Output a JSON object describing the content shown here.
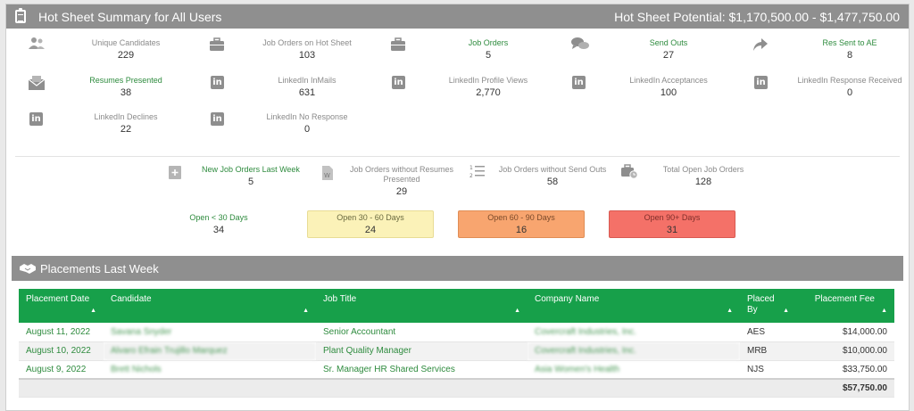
{
  "header": {
    "title": "Hot Sheet Summary for All Users",
    "potential": "Hot Sheet Potential: $1,170,500.00 - $1,477,750.00"
  },
  "stats": [
    {
      "label": "Unique Candidates",
      "value": "229",
      "icon": "users-icon"
    },
    {
      "label": "Job Orders on Hot Sheet",
      "value": "103",
      "icon": "briefcase-icon"
    },
    {
      "label": "Job Orders",
      "value": "5",
      "icon": "briefcase-icon"
    },
    {
      "label": "Send Outs",
      "value": "27",
      "icon": "chat-bubbles-icon"
    },
    {
      "label": "Res Sent to AE",
      "value": "8",
      "icon": "share-arrow-icon"
    },
    {
      "label": "Resumes Presented",
      "value": "38",
      "icon": "envelope-icon"
    },
    {
      "label": "LinkedIn InMails",
      "value": "631",
      "icon": "linkedin-icon"
    },
    {
      "label": "LinkedIn Profile Views",
      "value": "2,770",
      "icon": "linkedin-icon"
    },
    {
      "label": "LinkedIn Acceptances",
      "value": "100",
      "icon": "linkedin-icon"
    },
    {
      "label": "LinkedIn Response Received",
      "value": "0",
      "icon": "linkedin-icon"
    },
    {
      "label": "LinkedIn Declines",
      "value": "22",
      "icon": "linkedin-icon"
    },
    {
      "label": "LinkedIn No Response",
      "value": "0",
      "icon": "linkedin-icon"
    }
  ],
  "job_stats": [
    {
      "label": "New Job Orders Last Week",
      "value": "5",
      "icon": "add-document-icon"
    },
    {
      "label": "Job Orders without Resumes Presented",
      "value": "29",
      "icon": "word-document-icon"
    },
    {
      "label": "Job Orders without Send Outs",
      "value": "58",
      "icon": "numbered-list-icon"
    },
    {
      "label": "Total Open Job Orders",
      "value": "128",
      "icon": "briefcase-clock-icon"
    }
  ],
  "age_boxes": [
    {
      "label": "Open < 30 Days",
      "value": "34",
      "color": "#ffffff"
    },
    {
      "label": "Open 30 - 60 Days",
      "value": "24",
      "color": "#fbf2b8"
    },
    {
      "label": "Open 60 - 90 Days",
      "value": "16",
      "color": "#f8a56f"
    },
    {
      "label": "Open 90+ Days",
      "value": "31",
      "color": "#f47168"
    }
  ],
  "placements": {
    "title": "Placements Last Week",
    "columns": [
      "Placement Date",
      "Candidate",
      "Job Title",
      "Company Name",
      "Placed By",
      "Placement Fee"
    ],
    "rows": [
      {
        "date": "August 11, 2022",
        "candidate": "Savana Snyder",
        "job": "Senior Accountant",
        "company": "Covercraft Industries, Inc.",
        "by": "AES",
        "fee": "$14,000.00"
      },
      {
        "date": "August 10, 2022",
        "candidate": "Alvaro Efrain Trujillo Marquez",
        "job": "Plant Quality Manager",
        "company": "Covercraft Industries, Inc.",
        "by": "MRB",
        "fee": "$10,000.00"
      },
      {
        "date": "August 9, 2022",
        "candidate": "Brett Nichols",
        "job": "Sr. Manager HR Shared Services",
        "company": "Asia Women's Health",
        "by": "NJS",
        "fee": "$33,750.00"
      }
    ],
    "total": "$57,750.00"
  }
}
